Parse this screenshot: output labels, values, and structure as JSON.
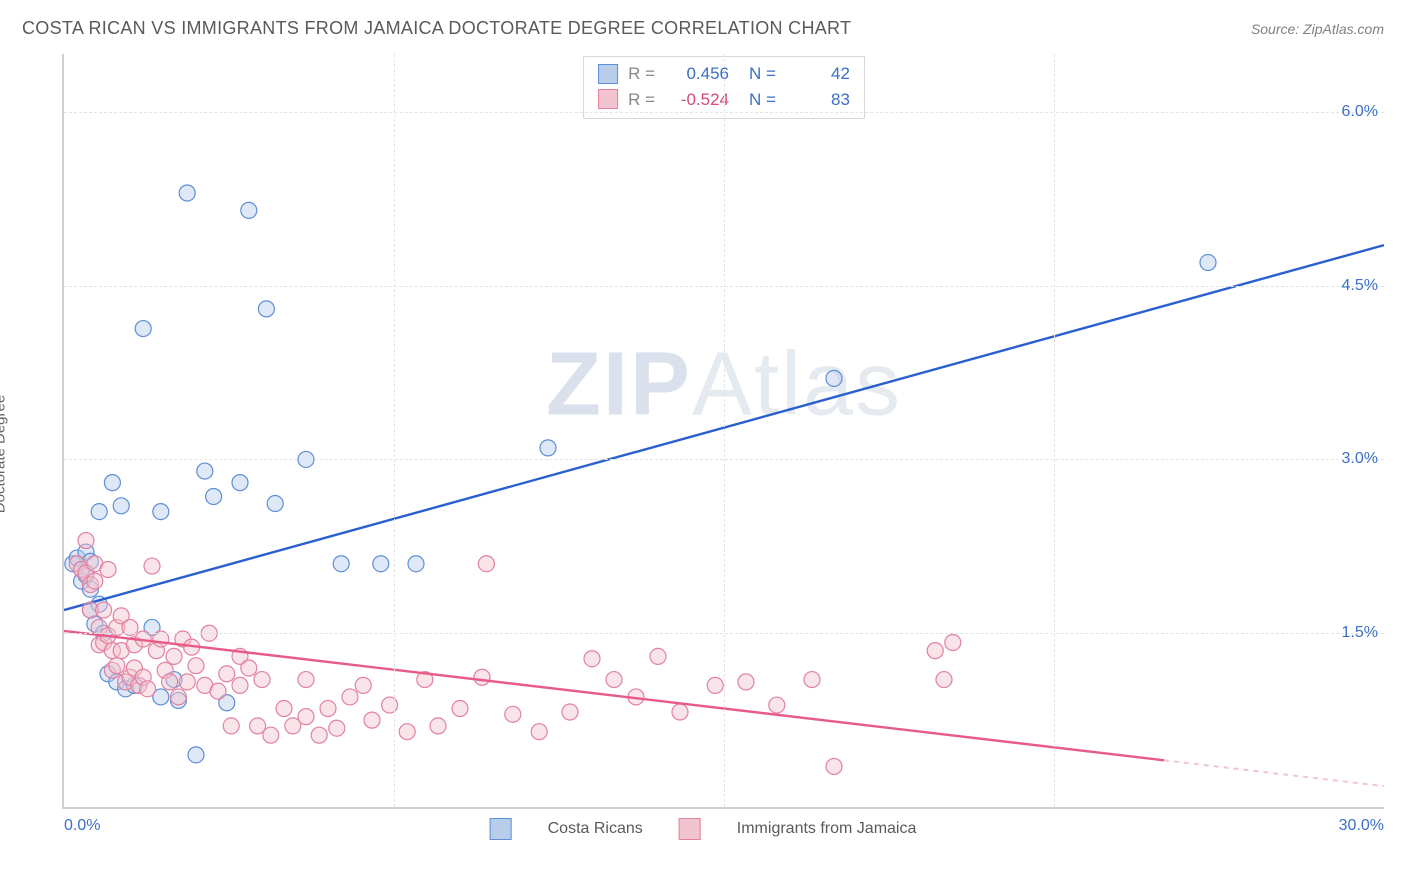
{
  "header": {
    "title": "COSTA RICAN VS IMMIGRANTS FROM JAMAICA DOCTORATE DEGREE CORRELATION CHART",
    "source": "Source: ZipAtlas.com"
  },
  "watermark": {
    "prefix": "ZIP",
    "suffix": "Atlas"
  },
  "chart": {
    "type": "scatter",
    "x_axis": {
      "min": 0,
      "max": 30,
      "label_min": "0.0%",
      "label_max": "30.0%"
    },
    "y_axis": {
      "title": "Doctorate Degree",
      "min": 0,
      "max": 6.5,
      "ticks": [
        1.5,
        3.0,
        4.5,
        6.0
      ],
      "tick_labels": [
        "1.5%",
        "3.0%",
        "4.5%",
        "6.0%"
      ]
    },
    "grid_color": "#e4e4e4",
    "background_color": "#ffffff",
    "axis_color": "#d0d0d0",
    "label_color": "#3b6fc9",
    "marker_radius": 8,
    "series": [
      {
        "key": "costa_ricans",
        "label": "Costa Ricans",
        "fill": "#b7cdea",
        "stroke": "#5e8ed6",
        "r_value": "0.456",
        "r_color": "#3b6fc9",
        "n_value": "42",
        "trend": {
          "color": "#2a5fd0",
          "y0": 1.7,
          "y1": 4.85,
          "x_solid_end": 30
        },
        "points": [
          [
            0.2,
            2.1
          ],
          [
            0.3,
            2.15
          ],
          [
            0.4,
            2.05
          ],
          [
            0.4,
            1.95
          ],
          [
            0.5,
            2.2
          ],
          [
            0.5,
            2.0
          ],
          [
            0.6,
            2.12
          ],
          [
            0.6,
            1.88
          ],
          [
            0.6,
            1.7
          ],
          [
            0.7,
            1.58
          ],
          [
            0.8,
            2.55
          ],
          [
            0.8,
            1.75
          ],
          [
            0.9,
            1.5
          ],
          [
            1.0,
            1.15
          ],
          [
            1.1,
            2.8
          ],
          [
            1.2,
            1.08
          ],
          [
            1.3,
            2.6
          ],
          [
            1.4,
            1.02
          ],
          [
            1.6,
            1.05
          ],
          [
            1.8,
            4.13
          ],
          [
            2.0,
            1.55
          ],
          [
            2.2,
            2.55
          ],
          [
            2.2,
            0.95
          ],
          [
            2.5,
            1.1
          ],
          [
            2.6,
            0.92
          ],
          [
            2.8,
            5.3
          ],
          [
            3.0,
            0.45
          ],
          [
            3.2,
            2.9
          ],
          [
            3.4,
            2.68
          ],
          [
            3.7,
            0.9
          ],
          [
            4.0,
            2.8
          ],
          [
            4.2,
            5.15
          ],
          [
            4.6,
            4.3
          ],
          [
            4.8,
            2.62
          ],
          [
            5.5,
            3.0
          ],
          [
            6.3,
            2.1
          ],
          [
            7.2,
            2.1
          ],
          [
            8.0,
            2.1
          ],
          [
            11.0,
            3.1
          ],
          [
            17.5,
            3.7
          ],
          [
            26.0,
            4.7
          ]
        ]
      },
      {
        "key": "immigrants_jamaica",
        "label": "Immigrants from Jamaica",
        "fill": "#f2c4cf",
        "stroke": "#e380a0",
        "r_value": "-0.524",
        "r_color": "#d44a74",
        "n_value": "83",
        "trend": {
          "color": "#e85a87",
          "y0": 1.52,
          "y1": 0.18,
          "x_solid_end": 25
        },
        "points": [
          [
            0.3,
            2.1
          ],
          [
            0.4,
            2.05
          ],
          [
            0.5,
            2.3
          ],
          [
            0.5,
            2.02
          ],
          [
            0.6,
            1.92
          ],
          [
            0.6,
            1.7
          ],
          [
            0.7,
            2.1
          ],
          [
            0.7,
            1.95
          ],
          [
            0.8,
            1.55
          ],
          [
            0.8,
            1.4
          ],
          [
            0.9,
            1.7
          ],
          [
            0.9,
            1.42
          ],
          [
            1.0,
            2.05
          ],
          [
            1.0,
            1.48
          ],
          [
            1.1,
            1.35
          ],
          [
            1.1,
            1.18
          ],
          [
            1.2,
            1.55
          ],
          [
            1.2,
            1.22
          ],
          [
            1.3,
            1.65
          ],
          [
            1.3,
            1.35
          ],
          [
            1.4,
            1.08
          ],
          [
            1.5,
            1.55
          ],
          [
            1.5,
            1.12
          ],
          [
            1.6,
            1.4
          ],
          [
            1.6,
            1.2
          ],
          [
            1.7,
            1.05
          ],
          [
            1.8,
            1.45
          ],
          [
            1.8,
            1.12
          ],
          [
            1.9,
            1.02
          ],
          [
            2.0,
            2.08
          ],
          [
            2.1,
            1.35
          ],
          [
            2.2,
            1.45
          ],
          [
            2.3,
            1.18
          ],
          [
            2.4,
            1.08
          ],
          [
            2.5,
            1.3
          ],
          [
            2.6,
            0.95
          ],
          [
            2.7,
            1.45
          ],
          [
            2.8,
            1.08
          ],
          [
            2.9,
            1.38
          ],
          [
            3.0,
            1.22
          ],
          [
            3.2,
            1.05
          ],
          [
            3.3,
            1.5
          ],
          [
            3.5,
            1.0
          ],
          [
            3.7,
            1.15
          ],
          [
            3.8,
            0.7
          ],
          [
            4.0,
            1.3
          ],
          [
            4.0,
            1.05
          ],
          [
            4.2,
            1.2
          ],
          [
            4.4,
            0.7
          ],
          [
            4.5,
            1.1
          ],
          [
            4.7,
            0.62
          ],
          [
            5.0,
            0.85
          ],
          [
            5.2,
            0.7
          ],
          [
            5.5,
            1.1
          ],
          [
            5.5,
            0.78
          ],
          [
            5.8,
            0.62
          ],
          [
            6.0,
            0.85
          ],
          [
            6.2,
            0.68
          ],
          [
            6.5,
            0.95
          ],
          [
            6.8,
            1.05
          ],
          [
            7.0,
            0.75
          ],
          [
            7.4,
            0.88
          ],
          [
            7.8,
            0.65
          ],
          [
            8.2,
            1.1
          ],
          [
            8.5,
            0.7
          ],
          [
            9.0,
            0.85
          ],
          [
            9.5,
            1.12
          ],
          [
            9.6,
            2.1
          ],
          [
            10.2,
            0.8
          ],
          [
            10.8,
            0.65
          ],
          [
            11.5,
            0.82
          ],
          [
            12.0,
            1.28
          ],
          [
            12.5,
            1.1
          ],
          [
            13.0,
            0.95
          ],
          [
            13.5,
            1.3
          ],
          [
            14.0,
            0.82
          ],
          [
            14.8,
            1.05
          ],
          [
            15.5,
            1.08
          ],
          [
            16.2,
            0.88
          ],
          [
            17.0,
            1.1
          ],
          [
            17.5,
            0.35
          ],
          [
            19.8,
            1.35
          ],
          [
            20.0,
            1.1
          ],
          [
            20.2,
            1.42
          ]
        ]
      }
    ]
  }
}
